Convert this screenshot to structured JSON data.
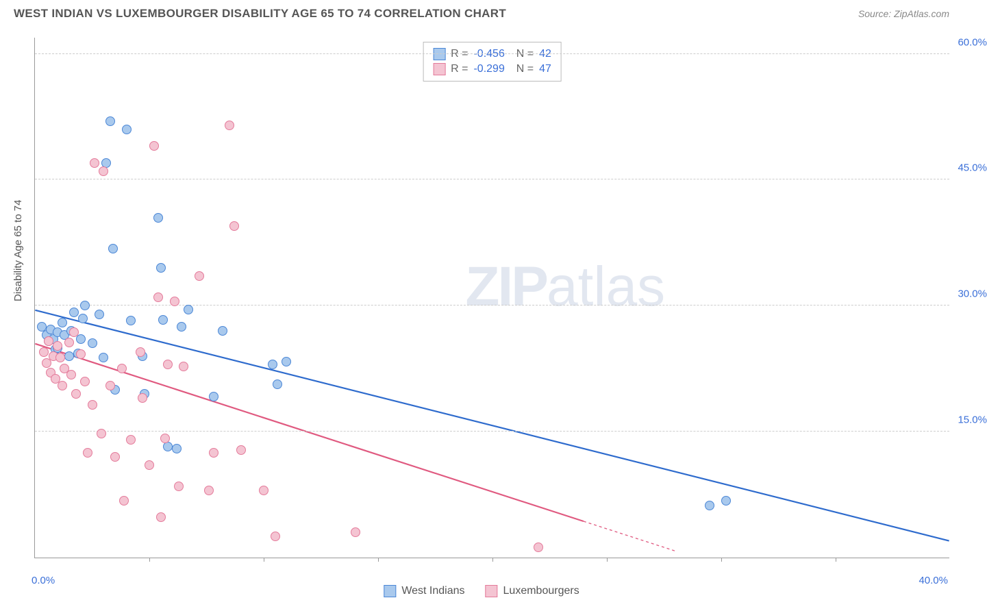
{
  "title": "WEST INDIAN VS LUXEMBOURGER DISABILITY AGE 65 TO 74 CORRELATION CHART",
  "source": "Source: ZipAtlas.com",
  "watermark_a": "ZIP",
  "watermark_b": "atlas",
  "chart": {
    "type": "scatter",
    "y_axis_title": "Disability Age 65 to 74",
    "xlim": [
      0,
      40
    ],
    "ylim": [
      0,
      62
    ],
    "y_ticks": [
      15,
      30,
      45,
      60
    ],
    "y_tick_labels": [
      "15.0%",
      "30.0%",
      "45.0%",
      "60.0%"
    ],
    "x_ticks": [
      0,
      5,
      10,
      15,
      20,
      25,
      30,
      35,
      40
    ],
    "x_origin_label": "0.0%",
    "x_max_label": "40.0%",
    "background_color": "#ffffff",
    "grid_color": "#cccccc",
    "series": [
      {
        "name": "West Indians",
        "marker_fill": "#a9c9ed",
        "marker_stroke": "#4a86d6",
        "marker_radius": 7,
        "line_color": "#2e6bcd",
        "line_width": 2.2,
        "R": "-0.456",
        "N": "42",
        "trend": {
          "x1": 0,
          "y1": 29.5,
          "x2": 40,
          "y2": 2.0,
          "dash_from_x": null
        },
        "points": [
          [
            0.3,
            27.5
          ],
          [
            0.5,
            26.5
          ],
          [
            0.6,
            25.8
          ],
          [
            0.7,
            27.2
          ],
          [
            0.8,
            26.0
          ],
          [
            0.9,
            24.8
          ],
          [
            1.0,
            26.8
          ],
          [
            1.0,
            25.0
          ],
          [
            1.2,
            28.0
          ],
          [
            1.3,
            26.5
          ],
          [
            1.5,
            24.0
          ],
          [
            1.6,
            27.0
          ],
          [
            1.7,
            29.2
          ],
          [
            1.9,
            24.3
          ],
          [
            2.0,
            26.0
          ],
          [
            2.1,
            28.5
          ],
          [
            2.2,
            30.0
          ],
          [
            2.5,
            25.5
          ],
          [
            2.8,
            29.0
          ],
          [
            3.0,
            23.8
          ],
          [
            3.1,
            47.0
          ],
          [
            3.3,
            52.0
          ],
          [
            3.4,
            36.8
          ],
          [
            3.5,
            20.0
          ],
          [
            4.0,
            51.0
          ],
          [
            4.2,
            28.2
          ],
          [
            4.7,
            24.0
          ],
          [
            4.8,
            19.5
          ],
          [
            5.4,
            40.5
          ],
          [
            5.5,
            34.5
          ],
          [
            5.6,
            28.3
          ],
          [
            5.8,
            13.2
          ],
          [
            6.2,
            13.0
          ],
          [
            6.4,
            27.5
          ],
          [
            6.7,
            29.5
          ],
          [
            7.8,
            19.2
          ],
          [
            8.2,
            27.0
          ],
          [
            10.4,
            23.0
          ],
          [
            10.6,
            20.6
          ],
          [
            11.0,
            23.3
          ],
          [
            29.5,
            6.2
          ],
          [
            30.2,
            6.8
          ]
        ]
      },
      {
        "name": "Luxembourgers",
        "marker_fill": "#f4c4d2",
        "marker_stroke": "#e47a9a",
        "marker_radius": 7,
        "line_color": "#e05a80",
        "line_width": 2.2,
        "R": "-0.299",
        "N": "47",
        "trend": {
          "x1": 0,
          "y1": 25.5,
          "x2": 28,
          "y2": 0.8,
          "dash_from_x": 24
        },
        "points": [
          [
            0.4,
            24.5
          ],
          [
            0.5,
            23.2
          ],
          [
            0.6,
            25.8
          ],
          [
            0.7,
            22.0
          ],
          [
            0.8,
            24.0
          ],
          [
            0.9,
            21.3
          ],
          [
            1.0,
            25.2
          ],
          [
            1.1,
            23.8
          ],
          [
            1.2,
            20.5
          ],
          [
            1.3,
            22.5
          ],
          [
            1.5,
            25.6
          ],
          [
            1.6,
            21.8
          ],
          [
            1.7,
            26.8
          ],
          [
            1.8,
            19.5
          ],
          [
            2.0,
            24.2
          ],
          [
            2.2,
            21.0
          ],
          [
            2.3,
            12.5
          ],
          [
            2.5,
            18.2
          ],
          [
            2.6,
            47.0
          ],
          [
            2.9,
            14.8
          ],
          [
            3.0,
            46.0
          ],
          [
            3.3,
            20.5
          ],
          [
            3.5,
            12.0
          ],
          [
            3.8,
            22.5
          ],
          [
            3.9,
            6.8
          ],
          [
            4.2,
            14.0
          ],
          [
            4.6,
            24.5
          ],
          [
            4.7,
            19.0
          ],
          [
            5.0,
            11.0
          ],
          [
            5.2,
            49.0
          ],
          [
            5.4,
            31.0
          ],
          [
            5.5,
            4.8
          ],
          [
            5.7,
            14.2
          ],
          [
            5.8,
            23.0
          ],
          [
            6.1,
            30.5
          ],
          [
            6.3,
            8.5
          ],
          [
            6.5,
            22.8
          ],
          [
            7.2,
            33.5
          ],
          [
            7.6,
            8.0
          ],
          [
            7.8,
            12.5
          ],
          [
            8.5,
            51.5
          ],
          [
            8.7,
            39.5
          ],
          [
            9.0,
            12.8
          ],
          [
            10.0,
            8.0
          ],
          [
            10.5,
            2.5
          ],
          [
            14.0,
            3.0
          ],
          [
            22.0,
            1.2
          ]
        ]
      }
    ]
  },
  "bottom_legend": [
    {
      "label": "West Indians",
      "fill": "#a9c9ed",
      "stroke": "#4a86d6"
    },
    {
      "label": "Luxembourgers",
      "fill": "#f4c4d2",
      "stroke": "#e47a9a"
    }
  ]
}
